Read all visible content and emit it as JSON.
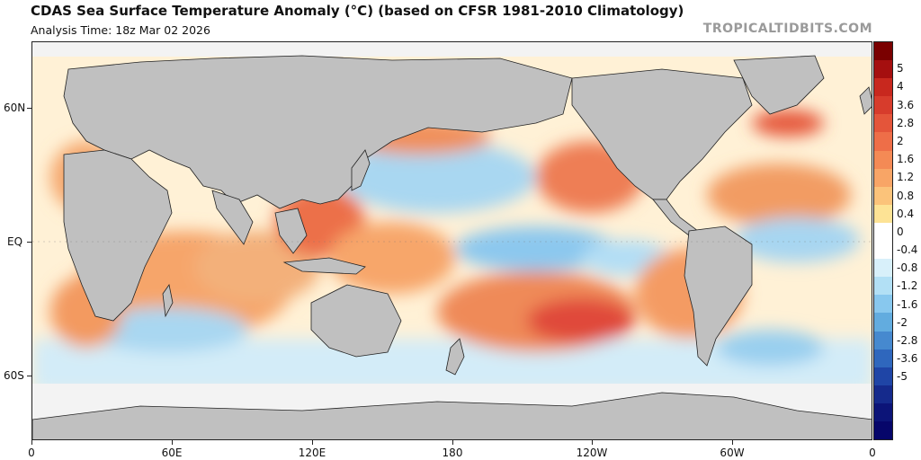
{
  "header": {
    "title": "CDAS Sea Surface Temperature Anomaly (°C) (based on CFSR 1981-2010 Climatology)",
    "analysis_time": "Analysis Time: 18z Mar 02 2026",
    "credit": "TROPICALTIDBITS.COM"
  },
  "axes": {
    "lat_labels": [
      "60N",
      "EQ",
      "60S"
    ],
    "lon_labels": [
      "0",
      "60E",
      "120E",
      "180",
      "120W",
      "60W",
      "0"
    ]
  },
  "colorbar": {
    "labels": [
      "5",
      "4",
      "3.6",
      "2.8",
      "2",
      "1.6",
      "1.2",
      "0.8",
      "0.4",
      "0",
      "-0.4",
      "-0.8",
      "-1.2",
      "-1.6",
      "-2",
      "-2.8",
      "-3.6",
      "-5"
    ],
    "colors": [
      "#7a0000",
      "#a50f0f",
      "#c8281e",
      "#d73c2c",
      "#e4553a",
      "#ee6e48",
      "#f48a55",
      "#f8a566",
      "#fbc37a",
      "#fde395",
      "#ffffff",
      "#ffffff",
      "#d8f0fa",
      "#b2e0f5",
      "#88c8ee",
      "#62acdf",
      "#4689cf",
      "#2f67bd",
      "#1f45a6",
      "#152a8c",
      "#0c1478",
      "#06066a"
    ],
    "colors_note_ignore": ""
  },
  "map_colors": {
    "land": "#c0c0c0",
    "ice": "#f3f3f3"
  }
}
